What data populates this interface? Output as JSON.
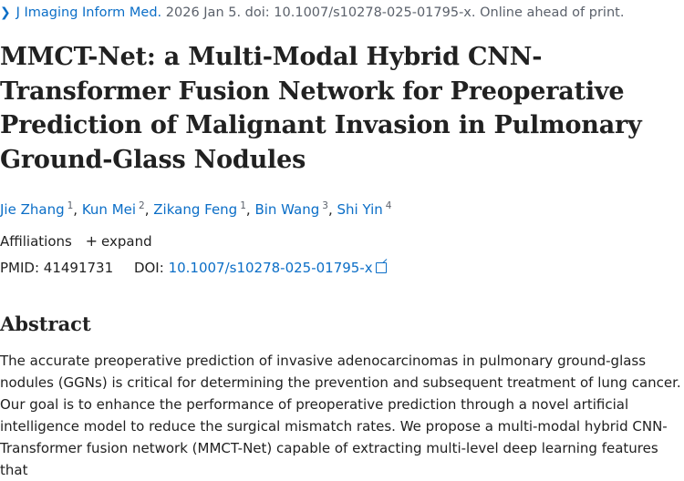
{
  "citation": {
    "journal": "J Imaging Inform Med.",
    "details": "2026 Jan 5. doi: 10.1007/s10278-025-01795-x. Online ahead of print."
  },
  "article": {
    "title": "MMCT-Net: a Multi-Modal Hybrid CNN-Transformer Fusion Network for Preoperative Prediction of Malignant Invasion in Pulmonary Ground-Glass Nodules"
  },
  "authors": [
    {
      "name": "Jie Zhang",
      "aff": "1"
    },
    {
      "name": "Kun Mei",
      "aff": "2"
    },
    {
      "name": "Zikang Feng",
      "aff": "1"
    },
    {
      "name": "Bin Wang",
      "aff": "3"
    },
    {
      "name": "Shi Yin",
      "aff": "4"
    }
  ],
  "affiliations": {
    "label": "Affiliations",
    "expand_label": "expand"
  },
  "ids": {
    "pmid_label": "PMID:",
    "pmid": "41491731",
    "doi_label": "DOI:",
    "doi": "10.1007/s10278-025-01795-x"
  },
  "abstract": {
    "heading": "Abstract",
    "text": "The accurate preoperative prediction of invasive adenocarcinomas in pulmonary ground-glass nodules (GGNs) is critical for determining the prevention and subsequent treatment of lung cancer. Our goal is to enhance the performance of preoperative prediction through a novel artificial intelligence model to reduce the surgical mismatch rates. We propose a multi-modal hybrid CNN-Transformer fusion network (MMCT-Net) capable of extracting multi-level deep learning features that"
  }
}
